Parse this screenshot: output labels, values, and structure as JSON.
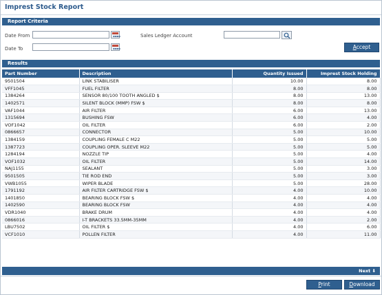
{
  "page": {
    "title": "Imprest Stock Report"
  },
  "criteria": {
    "section_label": "Report Criteria",
    "date_from_label": "Date From",
    "date_from_value": "",
    "date_to_label": "Date To",
    "date_to_value": "",
    "account_label": "Sales Ledger Account",
    "account_value": "",
    "accept_prefix": "",
    "accept_underlined": "A",
    "accept_rest": "ccept",
    "calendar_icon": "calendar-icon",
    "search_icon": "search-icon"
  },
  "results": {
    "section_label": "Results",
    "columns": [
      "Part Number",
      "Description",
      "Quantity Issued",
      "Imprest Stock Holding"
    ],
    "rows": [
      [
        "9501504",
        "LINK STABILISER",
        "10.00",
        "8.00"
      ],
      [
        "VFF1045",
        "FUEL FILTER",
        "8.00",
        "8.00"
      ],
      [
        "1384264",
        "SENSOR 80/100 TOOTH ANGLED $",
        "8.00",
        "13.00"
      ],
      [
        "1402571",
        "SILENT BLOCK (MMP) FSW $",
        "8.00",
        "8.00"
      ],
      [
        "VAF1044",
        "AIR FILTER",
        "6.00",
        "13.00"
      ],
      [
        "1315694",
        "BUSHING FSW",
        "6.00",
        "4.00"
      ],
      [
        "VOF1042",
        "OIL FILTER",
        "6.00",
        "2.00"
      ],
      [
        "0866657",
        "CONNECTOR",
        "5.00",
        "10.00"
      ],
      [
        "1384159",
        "COUPLING FEMALE C M22",
        "5.00",
        "5.00"
      ],
      [
        "1387723",
        "COUPLING OPER. SLEEVE M22",
        "5.00",
        "5.00"
      ],
      [
        "1284194",
        "NOZZLE TIP",
        "5.00",
        "4.00"
      ],
      [
        "VOF1032",
        "OIL FILTER",
        "5.00",
        "14.00"
      ],
      [
        "NAJ1155",
        "SEALANT",
        "5.00",
        "3.00"
      ],
      [
        "9501505",
        "TIE ROD END",
        "5.00",
        "3.00"
      ],
      [
        "VWB1055",
        "WIPER BLADE",
        "5.00",
        "28.00"
      ],
      [
        "1791192",
        "AIR FILTER CARTRIDGE FSW $",
        "4.00",
        "10.00"
      ],
      [
        "1401850",
        "BEARING BLOCK FSW $",
        "4.00",
        "4.00"
      ],
      [
        "1402590",
        "BEARING BLOCK FSW",
        "4.00",
        "4.00"
      ],
      [
        "VDR1040",
        "BRAKE DRUM",
        "4.00",
        "4.00"
      ],
      [
        "0866016",
        "I-T BRACKETS 33.5MM-35MM",
        "4.00",
        "2.00"
      ],
      [
        "LBU7502",
        "OIL FILTER $",
        "4.00",
        "6.00"
      ],
      [
        "VCF1010",
        "POLLEN FILTER",
        "4.00",
        "11.00"
      ]
    ],
    "next_label": "Next"
  },
  "footer": {
    "print_underlined": "P",
    "print_rest": "rint",
    "download_prefix": "",
    "download_underlined": "D",
    "download_rest": "ownload"
  },
  "colors": {
    "header_bar": "#2f5f8f",
    "title": "#2c5a8c"
  }
}
